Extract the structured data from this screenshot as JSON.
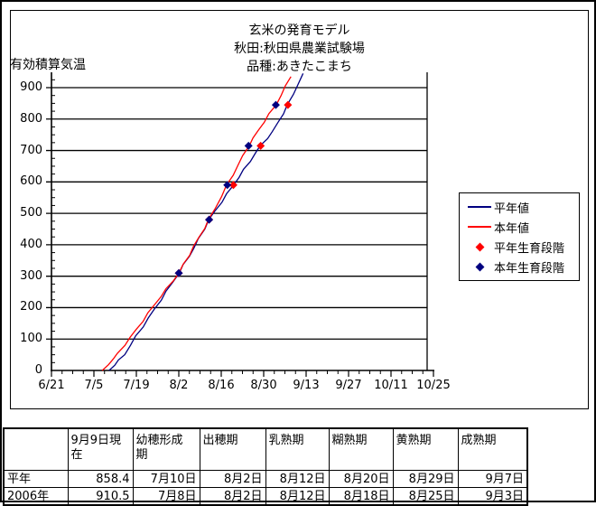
{
  "chart": {
    "title_lines": [
      "玄米の発育モデル",
      "秋田:秋田県農業試験場",
      "品種:あきたこまち"
    ],
    "y_axis_label": "有効積算気温"
  },
  "colors": {
    "normal_year": "#000080",
    "this_year": "#ff0000",
    "grid": "#000000",
    "background": "#ffffff"
  },
  "chart_data": {
    "type": "line",
    "title": "玄米の発育モデル",
    "subtitle_lines": [
      "秋田:秋田県農業試験場",
      "品種:あきたこまち"
    ],
    "ylabel": "有効積算気温",
    "ylim": [
      0,
      950
    ],
    "y_major_unit": 100,
    "y_minor_unit": 25,
    "y_tick_labels": [
      "0",
      "100",
      "200",
      "300",
      "400",
      "500",
      "600",
      "700",
      "800",
      "900"
    ],
    "x_tick_labels": [
      "6/21",
      "7/5",
      "7/19",
      "8/2",
      "8/16",
      "8/30",
      "9/13",
      "9/27",
      "10/11",
      "10/25"
    ],
    "grid": true,
    "legend_position": "right",
    "series": [
      {
        "name": "平年値",
        "kind": "line",
        "color": "#000080",
        "points": [
          [
            "7/10",
            0
          ],
          [
            "7/15",
            50
          ],
          [
            "7/19",
            110
          ],
          [
            "7/25",
            195
          ],
          [
            "8/2",
            310
          ],
          [
            "8/7",
            390
          ],
          [
            "8/12",
            480
          ],
          [
            "8/20",
            590
          ],
          [
            "8/29",
            715
          ],
          [
            "9/2",
            760
          ],
          [
            "9/7",
            845
          ],
          [
            "9/12",
            945
          ]
        ]
      },
      {
        "name": "本年値",
        "kind": "line",
        "color": "#ff0000",
        "points": [
          [
            "7/8",
            0
          ],
          [
            "7/13",
            55
          ],
          [
            "7/19",
            130
          ],
          [
            "7/25",
            210
          ],
          [
            "8/2",
            310
          ],
          [
            "8/7",
            395
          ],
          [
            "8/12",
            480
          ],
          [
            "8/18",
            590
          ],
          [
            "8/25",
            715
          ],
          [
            "8/30",
            790
          ],
          [
            "9/3",
            845
          ],
          [
            "9/8",
            935
          ]
        ]
      },
      {
        "name": "平年生育段階",
        "kind": "scatter",
        "marker": "diamond",
        "color": "#ff0000",
        "points": [
          [
            "8/2",
            310
          ],
          [
            "8/12",
            480
          ],
          [
            "8/20",
            590
          ],
          [
            "8/29",
            715
          ],
          [
            "9/7",
            845
          ]
        ]
      },
      {
        "name": "本年生育段階",
        "kind": "scatter",
        "marker": "diamond",
        "color": "#000080",
        "points": [
          [
            "8/2",
            310
          ],
          [
            "8/12",
            480
          ],
          [
            "8/18",
            590
          ],
          [
            "8/25",
            715
          ],
          [
            "9/3",
            845
          ]
        ]
      }
    ],
    "legend_items": [
      {
        "label": "平年値",
        "marker": "line",
        "color": "#000080"
      },
      {
        "label": "本年値",
        "marker": "line",
        "color": "#ff0000"
      },
      {
        "label": "平年生育段階",
        "marker": "diamond",
        "color": "#ff0000"
      },
      {
        "label": "本年生育段階",
        "marker": "diamond",
        "color": "#000080"
      }
    ]
  },
  "table": {
    "headers": [
      "",
      "9月9日現在",
      "幼穂形成期",
      "出穂期",
      "乳熟期",
      "糊熟期",
      "黄熟期",
      "成熟期"
    ],
    "rows": [
      {
        "label": "平年",
        "current": "858.4",
        "dates": [
          "7月10日",
          "8月2日",
          "8月12日",
          "8月20日",
          "8月29日",
          "9月7日"
        ]
      },
      {
        "label": "2006年",
        "current": "910.5",
        "dates": [
          "7月8日",
          "8月2日",
          "8月12日",
          "8月18日",
          "8月25日",
          "9月3日"
        ]
      }
    ]
  }
}
